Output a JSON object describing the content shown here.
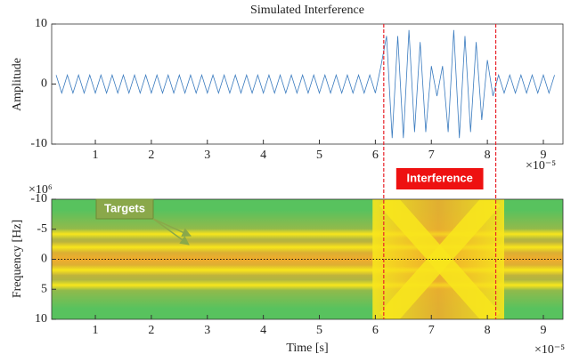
{
  "chart_data": [
    {
      "type": "line",
      "title": "Simulated Interference",
      "ylabel": "Amplitude",
      "x_multiplier": "×10⁻⁵",
      "xlim": [
        0.22,
        9.35
      ],
      "xticks": [
        1,
        2,
        3,
        4,
        5,
        6,
        7,
        8,
        9
      ],
      "ylim": [
        -10,
        10
      ],
      "yticks": [
        -10,
        0,
        10
      ],
      "color": "#3a7bbf",
      "x": [
        0.3,
        0.4,
        0.5,
        0.6,
        0.7,
        0.8,
        0.9,
        1.0,
        1.1,
        1.2,
        1.3,
        1.4,
        1.5,
        1.6,
        1.7,
        1.8,
        1.9,
        2.0,
        2.1,
        2.2,
        2.3,
        2.4,
        2.5,
        2.6,
        2.7,
        2.8,
        2.9,
        3.0,
        3.1,
        3.2,
        3.3,
        3.4,
        3.5,
        3.6,
        3.7,
        3.8,
        3.9,
        4.0,
        4.1,
        4.2,
        4.3,
        4.4,
        4.5,
        4.6,
        4.7,
        4.8,
        4.9,
        5.0,
        5.1,
        5.2,
        5.3,
        5.4,
        5.5,
        5.6,
        5.7,
        5.8,
        5.9,
        6.0,
        6.1,
        6.2,
        6.3,
        6.4,
        6.5,
        6.6,
        6.7,
        6.8,
        6.9,
        7.0,
        7.1,
        7.2,
        7.3,
        7.4,
        7.5,
        7.6,
        7.7,
        7.8,
        7.9,
        8.0,
        8.1,
        8.2,
        8.3,
        8.4,
        8.5,
        8.6,
        8.7,
        8.8,
        8.9,
        9.0,
        9.1,
        9.2
      ],
      "values": [
        1.5,
        -1.5,
        1.5,
        -1.5,
        1.5,
        -1.5,
        1.5,
        -1.5,
        1.5,
        -1.5,
        1.5,
        -1.5,
        1.5,
        -1.5,
        1.5,
        -1.5,
        1.5,
        -1.5,
        1.5,
        -1.5,
        1.5,
        -1.5,
        1.5,
        -1.5,
        1.5,
        -1.5,
        1.5,
        -1.5,
        1.5,
        -1.5,
        1.5,
        -1.5,
        1.5,
        -1.5,
        1.5,
        -1.5,
        1.5,
        -1.5,
        1.5,
        -1.5,
        1.5,
        -1.5,
        1.5,
        -1.5,
        1.5,
        -1.5,
        1.5,
        -1.5,
        1.5,
        -1.5,
        1.5,
        -1.5,
        1.5,
        -1.5,
        1.5,
        -1.5,
        1.5,
        -1.5,
        3,
        8,
        -9,
        8,
        -9,
        9,
        -8,
        7,
        -8,
        3,
        -2,
        3,
        -8,
        9,
        -9,
        8,
        -8,
        7,
        -6,
        4,
        -2,
        1.5,
        -1.5,
        1.5,
        -1.5,
        1.5,
        -1.5,
        1.5,
        -1.5,
        1.5,
        -1.5,
        1.5
      ],
      "vlines": [
        6.15,
        8.15
      ],
      "vline_color": "#e8232a",
      "annotation": "Interference",
      "annotation_color": "#ee1111"
    },
    {
      "type": "spectrogram",
      "xlabel": "Time [s]",
      "ylabel": "Frequency [Hz]",
      "x_multiplier": "×10⁻⁵",
      "y_multiplier": "×10⁶",
      "xlim": [
        0.22,
        9.35
      ],
      "xticks": [
        1,
        2,
        3,
        4,
        5,
        6,
        7,
        8,
        9
      ],
      "ylim": [
        -10,
        10
      ],
      "yticks": [
        -10,
        -5,
        0,
        5,
        10
      ],
      "y_reversed": true,
      "colormap": [
        "#58c25e",
        "#f0ac2c",
        "#f8e61c"
      ],
      "targets": [
        -4.2,
        -2,
        1.8,
        4.3
      ],
      "interference_x": [
        5.95,
        8.3
      ],
      "chirps": [
        {
          "x": [
            6.2,
            8.1
          ],
          "values": [
            -10,
            10
          ]
        },
        {
          "x": [
            6.2,
            8.1
          ],
          "values": [
            10,
            -10
          ]
        }
      ],
      "hline": 0,
      "annotation": "Targets",
      "annotation_color": "#8aa84a"
    }
  ]
}
